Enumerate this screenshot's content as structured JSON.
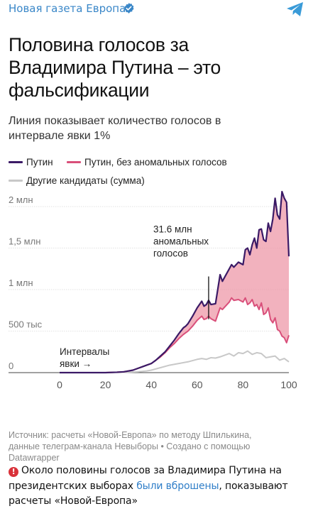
{
  "header": {
    "channel_name": "Новая газета Европа",
    "verified_icon": "verified-check-icon",
    "share_icon": "telegram-plane-icon",
    "accent": "#3a87c8"
  },
  "card": {
    "title": "Половина голосов за\nВладимира Путина – это\nфальсификации",
    "subtitle": "Линия показывает количество голосов в\nинтервале явки 1%",
    "source": "Источник: расчеты «Новой-Европа» по методу Шпилькина,\nданные телеграм-канала Невыборы • Создано с помощью\nDatawrapper"
  },
  "chart_data": {
    "type": "line",
    "title": "Половина голосов за Владимира Путина – это фальсификации",
    "subtitle": "Линия показывает количество голосов в интервале явки 1%",
    "xlim": [
      0,
      100
    ],
    "ylim": [
      0,
      2200000
    ],
    "x_ticks": [
      "0",
      "20",
      "40",
      "60",
      "80",
      "100"
    ],
    "y_ticks": [
      {
        "value": 0,
        "label": "0"
      },
      {
        "value": 500000,
        "label": "500 тыс"
      },
      {
        "value": 1000000,
        "label": "1 млн"
      },
      {
        "value": 1500000,
        "label": "1,5 млн"
      },
      {
        "value": 2000000,
        "label": "2 млн"
      }
    ],
    "legend_placement": "top-left",
    "annotations": [
      {
        "text_lines": [
          "31.6 млн",
          "аномальных",
          "голосов"
        ],
        "x": 65,
        "y_top": 1500000,
        "y_bottom": 900000
      },
      {
        "text_lines": [
          "Интервалы",
          "явки →"
        ],
        "x": 0,
        "y": 100000
      }
    ],
    "series": [
      {
        "name": "Путин",
        "color": "#3b1a66",
        "x": [
          0,
          20,
          25,
          28,
          30,
          32,
          34,
          36,
          38,
          40,
          42,
          44,
          46,
          48,
          50,
          52,
          54,
          55,
          56,
          58,
          60,
          62,
          63,
          64,
          65,
          66,
          68,
          70,
          71,
          72,
          74,
          75,
          76,
          78,
          80,
          81,
          82,
          83,
          84,
          85,
          86,
          87,
          88,
          89,
          90,
          91,
          92,
          93,
          94,
          95,
          96,
          97,
          98,
          99,
          100
        ],
        "y": [
          0,
          0,
          5000,
          10000,
          20000,
          30000,
          50000,
          70000,
          90000,
          110000,
          150000,
          200000,
          250000,
          320000,
          390000,
          470000,
          540000,
          560000,
          590000,
          680000,
          780000,
          860000,
          800000,
          820000,
          870000,
          820000,
          830000,
          1180000,
          1100000,
          1150000,
          1250000,
          1300000,
          1270000,
          1330000,
          1300000,
          1480000,
          1500000,
          1420000,
          1540000,
          1620000,
          1500000,
          1720000,
          1730000,
          1600000,
          1580000,
          1800000,
          1700000,
          1850000,
          2100000,
          1900000,
          1850000,
          2180000,
          2100000,
          2050000,
          1400000
        ]
      },
      {
        "name": "Путин, без аномальных голосов",
        "color": "#d94f7a",
        "fill": "#ee98a8",
        "x": [
          0,
          20,
          25,
          28,
          30,
          32,
          34,
          36,
          38,
          40,
          42,
          44,
          46,
          48,
          50,
          52,
          54,
          55,
          56,
          58,
          60,
          62,
          63,
          64,
          65,
          66,
          68,
          70,
          71,
          72,
          74,
          75,
          76,
          78,
          80,
          81,
          82,
          83,
          84,
          85,
          86,
          87,
          88,
          89,
          90,
          91,
          92,
          93,
          94,
          95,
          96,
          97,
          98,
          99,
          100
        ],
        "y": [
          0,
          0,
          5000,
          10000,
          20000,
          30000,
          50000,
          70000,
          90000,
          110000,
          150000,
          190000,
          240000,
          300000,
          350000,
          410000,
          460000,
          480000,
          500000,
          560000,
          630000,
          680000,
          640000,
          650000,
          680000,
          650000,
          620000,
          780000,
          760000,
          790000,
          850000,
          900000,
          870000,
          880000,
          850000,
          900000,
          820000,
          840000,
          880000,
          800000,
          820000,
          760000,
          840000,
          700000,
          720000,
          780000,
          640000,
          600000,
          660000,
          520000,
          500000,
          440000,
          420000,
          360000,
          450000
        ]
      },
      {
        "name": "Другие кандидаты (сумма)",
        "color": "#c8c8c8",
        "x": [
          0,
          20,
          30,
          34,
          38,
          40,
          44,
          48,
          52,
          56,
          60,
          62,
          64,
          66,
          68,
          70,
          72,
          74,
          76,
          78,
          80,
          82,
          84,
          86,
          88,
          90,
          92,
          94,
          96,
          98,
          100
        ],
        "y": [
          0,
          0,
          5000,
          10000,
          20000,
          30000,
          60000,
          90000,
          110000,
          130000,
          160000,
          170000,
          160000,
          180000,
          175000,
          190000,
          210000,
          230000,
          200000,
          240000,
          230000,
          260000,
          220000,
          240000,
          230000,
          180000,
          190000,
          200000,
          150000,
          170000,
          130000
        ]
      }
    ]
  },
  "footer": {
    "part1": "Около половины голосов за Владимира Путина на президентских выборах ",
    "link": "были вброшены",
    "part2": ", показывают расчеты «Новой-Европа»"
  }
}
